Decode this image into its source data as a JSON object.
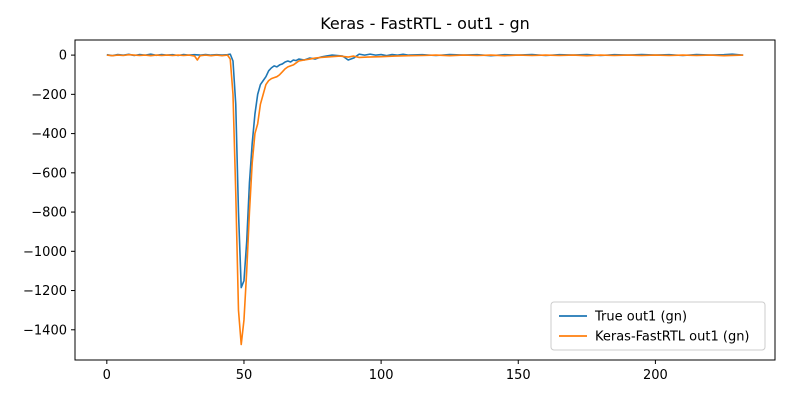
{
  "chart_data": {
    "type": "line",
    "title": "Keras - FastRTL - out1 - gn",
    "xlabel": "",
    "ylabel": "",
    "xlim": [
      -11.6,
      243.6
    ],
    "ylim": [
      -1554,
      77
    ],
    "xticks": [
      0,
      50,
      100,
      150,
      200
    ],
    "yticks": [
      0,
      -200,
      -400,
      -600,
      -800,
      -1000,
      -1200,
      -1400
    ],
    "grid": false,
    "legend_position": "lower-right",
    "series": [
      {
        "name": "True out1 (gn)",
        "color": "#1f77b4",
        "points": [
          [
            0,
            2
          ],
          [
            2,
            -3
          ],
          [
            4,
            3
          ],
          [
            6,
            0
          ],
          [
            8,
            4
          ],
          [
            10,
            -2
          ],
          [
            12,
            3
          ],
          [
            14,
            0
          ],
          [
            16,
            5
          ],
          [
            18,
            -1
          ],
          [
            20,
            3
          ],
          [
            22,
            0
          ],
          [
            24,
            2
          ],
          [
            26,
            -2
          ],
          [
            28,
            3
          ],
          [
            30,
            0
          ],
          [
            32,
            2
          ],
          [
            34,
            0
          ],
          [
            36,
            3
          ],
          [
            38,
            0
          ],
          [
            40,
            2
          ],
          [
            42,
            0
          ],
          [
            44,
            2
          ],
          [
            45,
            5
          ],
          [
            46,
            -30
          ],
          [
            47,
            -250
          ],
          [
            48,
            -800
          ],
          [
            49,
            -1185
          ],
          [
            50,
            -1150
          ],
          [
            51,
            -950
          ],
          [
            52,
            -650
          ],
          [
            53,
            -450
          ],
          [
            54,
            -300
          ],
          [
            55,
            -200
          ],
          [
            56,
            -150
          ],
          [
            57,
            -130
          ],
          [
            58,
            -110
          ],
          [
            59,
            -80
          ],
          [
            60,
            -65
          ],
          [
            61,
            -55
          ],
          [
            62,
            -60
          ],
          [
            63,
            -50
          ],
          [
            64,
            -45
          ],
          [
            65,
            -35
          ],
          [
            66,
            -30
          ],
          [
            67,
            -35
          ],
          [
            68,
            -25
          ],
          [
            69,
            -28
          ],
          [
            70,
            -20
          ],
          [
            72,
            -25
          ],
          [
            74,
            -15
          ],
          [
            76,
            -20
          ],
          [
            78,
            -10
          ],
          [
            80,
            -5
          ],
          [
            82,
            0
          ],
          [
            84,
            -2
          ],
          [
            86,
            -5
          ],
          [
            88,
            -25
          ],
          [
            90,
            -15
          ],
          [
            92,
            5
          ],
          [
            94,
            0
          ],
          [
            96,
            5
          ],
          [
            98,
            0
          ],
          [
            100,
            3
          ],
          [
            102,
            -3
          ],
          [
            104,
            3
          ],
          [
            106,
            0
          ],
          [
            108,
            4
          ],
          [
            110,
            0
          ],
          [
            115,
            2
          ],
          [
            120,
            -2
          ],
          [
            125,
            3
          ],
          [
            130,
            0
          ],
          [
            135,
            2
          ],
          [
            140,
            -3
          ],
          [
            145,
            2
          ],
          [
            150,
            0
          ],
          [
            155,
            3
          ],
          [
            160,
            -2
          ],
          [
            165,
            2
          ],
          [
            170,
            0
          ],
          [
            175,
            3
          ],
          [
            180,
            -2
          ],
          [
            185,
            2
          ],
          [
            190,
            0
          ],
          [
            195,
            3
          ],
          [
            200,
            0
          ],
          [
            205,
            2
          ],
          [
            210,
            -2
          ],
          [
            215,
            3
          ],
          [
            220,
            0
          ],
          [
            225,
            2
          ],
          [
            228,
            5
          ],
          [
            232,
            0
          ]
        ]
      },
      {
        "name": "Keras-FastRTL out1 (gn)",
        "color": "#ff7f0e",
        "points": [
          [
            0,
            0
          ],
          [
            2,
            -3
          ],
          [
            4,
            0
          ],
          [
            6,
            -2
          ],
          [
            8,
            2
          ],
          [
            10,
            0
          ],
          [
            12,
            -2
          ],
          [
            14,
            0
          ],
          [
            16,
            -3
          ],
          [
            18,
            0
          ],
          [
            20,
            -2
          ],
          [
            22,
            0
          ],
          [
            24,
            -2
          ],
          [
            26,
            0
          ],
          [
            28,
            -2
          ],
          [
            30,
            0
          ],
          [
            32,
            -5
          ],
          [
            33,
            -25
          ],
          [
            34,
            -3
          ],
          [
            36,
            0
          ],
          [
            38,
            -3
          ],
          [
            40,
            0
          ],
          [
            42,
            -3
          ],
          [
            44,
            0
          ],
          [
            45,
            -20
          ],
          [
            46,
            -200
          ],
          [
            47,
            -700
          ],
          [
            48,
            -1300
          ],
          [
            49,
            -1475
          ],
          [
            50,
            -1350
          ],
          [
            51,
            -1100
          ],
          [
            52,
            -800
          ],
          [
            53,
            -550
          ],
          [
            54,
            -400
          ],
          [
            55,
            -350
          ],
          [
            56,
            -250
          ],
          [
            57,
            -200
          ],
          [
            58,
            -150
          ],
          [
            59,
            -130
          ],
          [
            60,
            -120
          ],
          [
            61,
            -115
          ],
          [
            62,
            -110
          ],
          [
            63,
            -100
          ],
          [
            64,
            -85
          ],
          [
            65,
            -70
          ],
          [
            66,
            -60
          ],
          [
            67,
            -55
          ],
          [
            68,
            -50
          ],
          [
            69,
            -40
          ],
          [
            70,
            -30
          ],
          [
            72,
            -25
          ],
          [
            74,
            -20
          ],
          [
            76,
            -15
          ],
          [
            78,
            -12
          ],
          [
            80,
            -10
          ],
          [
            85,
            -5
          ],
          [
            88,
            -10
          ],
          [
            90,
            -5
          ],
          [
            92,
            -12
          ],
          [
            95,
            -10
          ],
          [
            100,
            -8
          ],
          [
            105,
            -5
          ],
          [
            110,
            -3
          ],
          [
            115,
            -2
          ],
          [
            120,
            0
          ],
          [
            125,
            -3
          ],
          [
            130,
            0
          ],
          [
            135,
            -2
          ],
          [
            140,
            0
          ],
          [
            145,
            -3
          ],
          [
            150,
            0
          ],
          [
            155,
            -2
          ],
          [
            160,
            0
          ],
          [
            165,
            -2
          ],
          [
            170,
            0
          ],
          [
            175,
            -3
          ],
          [
            180,
            0
          ],
          [
            185,
            -2
          ],
          [
            190,
            0
          ],
          [
            195,
            -2
          ],
          [
            200,
            0
          ],
          [
            205,
            -2
          ],
          [
            210,
            0
          ],
          [
            215,
            -2
          ],
          [
            220,
            0
          ],
          [
            225,
            -3
          ],
          [
            232,
            0
          ]
        ]
      }
    ]
  }
}
